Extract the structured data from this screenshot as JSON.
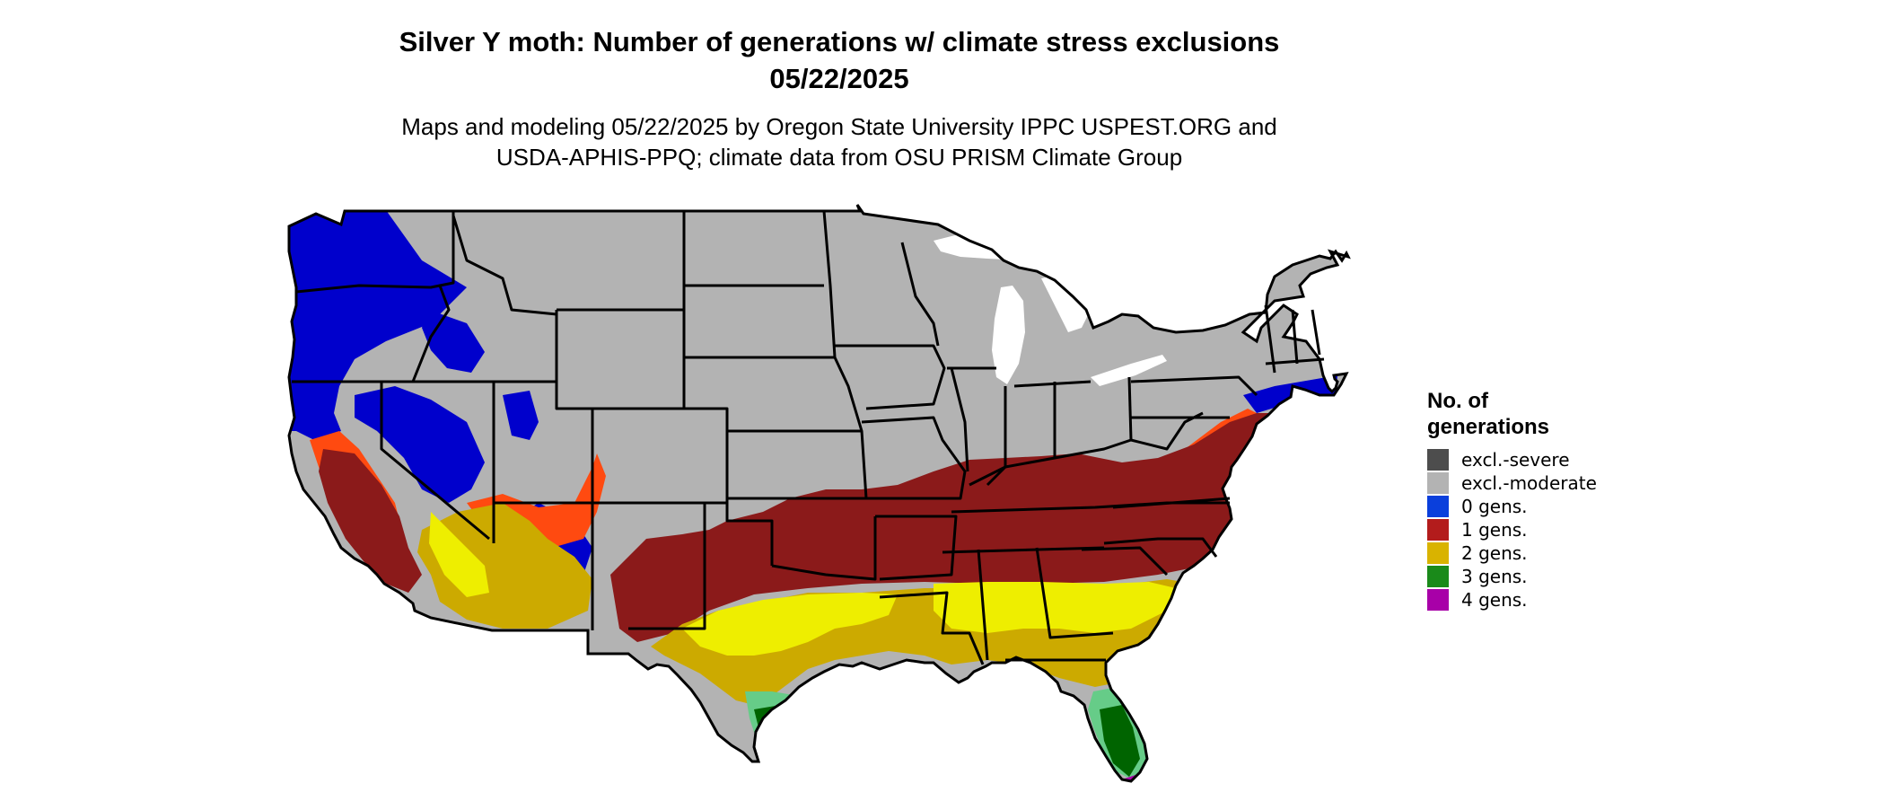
{
  "title_lines": [
    "Silver Y moth: Number of generations w/ climate stress exclusions",
    "05/22/2025"
  ],
  "subtitle_lines": [
    "Maps and modeling 05/22/2025 by Oregon State University IPPC USPEST.ORG and",
    "USDA-APHIS-PPQ; climate data from OSU PRISM Climate Group"
  ],
  "legend": {
    "title_lines": [
      "No. of",
      "generations"
    ],
    "items": [
      {
        "label": "excl.-severe",
        "color": "#4d4d4d"
      },
      {
        "label": "excl.-moderate",
        "color": "#b3b3b3"
      },
      {
        "label": "0 gens.",
        "color": "#0a3fdc"
      },
      {
        "label": "1 gens.",
        "color": "#b31c1c"
      },
      {
        "label": "2 gens.",
        "color": "#d9b300"
      },
      {
        "label": "3 gens.",
        "color": "#1a8a1a"
      },
      {
        "label": "4 gens.",
        "color": "#a800a8"
      }
    ]
  },
  "map_colors": {
    "excl_moderate": "#b3b3b3",
    "zero_gens": "#0000cc",
    "one_gens": "#8b1a1a",
    "one_gens_orange": "#ff4a10",
    "two_gens": "#ccaa00",
    "two_gens_bright": "#eeee00",
    "three_gens": "#006400",
    "three_gens_light": "#66cc88",
    "four_gens": "#aa00aa",
    "water": "#ffffff",
    "border": "#000000"
  }
}
